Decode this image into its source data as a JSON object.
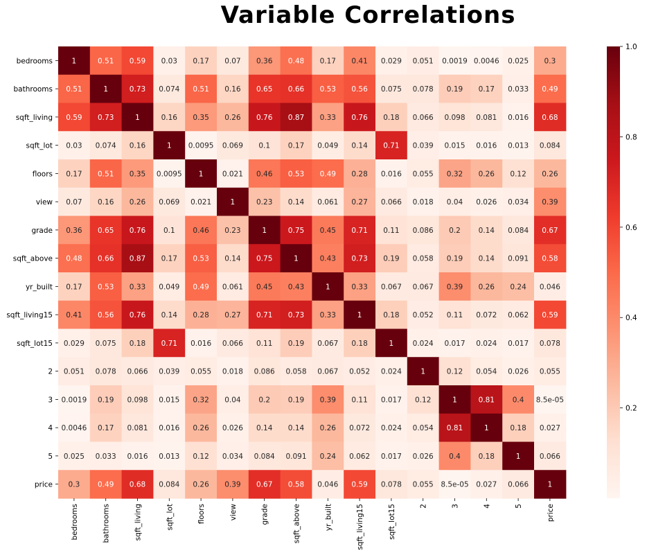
{
  "chart_data": {
    "type": "heatmap",
    "title": "Variable Correlations",
    "labels": [
      "bedrooms",
      "bathrooms",
      "sqft_living",
      "sqft_lot",
      "floors",
      "view",
      "grade",
      "sqft_above",
      "yr_built",
      "sqft_living15",
      "sqft_lot15",
      "2",
      "3",
      "4",
      "5",
      "price"
    ],
    "values": [
      [
        1,
        0.51,
        0.59,
        0.03,
        0.17,
        0.07,
        0.36,
        0.48,
        0.17,
        0.41,
        0.029,
        0.051,
        0.0019,
        0.0046,
        0.025,
        0.3
      ],
      [
        0.51,
        1,
        0.73,
        0.074,
        0.51,
        0.16,
        0.65,
        0.66,
        0.53,
        0.56,
        0.075,
        0.078,
        0.19,
        0.17,
        0.033,
        0.49
      ],
      [
        0.59,
        0.73,
        1,
        0.16,
        0.35,
        0.26,
        0.76,
        0.87,
        0.33,
        0.76,
        0.18,
        0.066,
        0.098,
        0.081,
        0.016,
        0.68
      ],
      [
        0.03,
        0.074,
        0.16,
        1,
        0.0095,
        0.069,
        0.1,
        0.17,
        0.049,
        0.14,
        0.71,
        0.039,
        0.015,
        0.016,
        0.013,
        0.084
      ],
      [
        0.17,
        0.51,
        0.35,
        0.0095,
        1,
        0.021,
        0.46,
        0.53,
        0.49,
        0.28,
        0.016,
        0.055,
        0.32,
        0.26,
        0.12,
        0.26
      ],
      [
        0.07,
        0.16,
        0.26,
        0.069,
        0.021,
        1,
        0.23,
        0.14,
        0.061,
        0.27,
        0.066,
        0.018,
        0.04,
        0.026,
        0.034,
        0.39
      ],
      [
        0.36,
        0.65,
        0.76,
        0.1,
        0.46,
        0.23,
        1,
        0.75,
        0.45,
        0.71,
        0.11,
        0.086,
        0.2,
        0.14,
        0.084,
        0.67
      ],
      [
        0.48,
        0.66,
        0.87,
        0.17,
        0.53,
        0.14,
        0.75,
        1,
        0.43,
        0.73,
        0.19,
        0.058,
        0.19,
        0.14,
        0.091,
        0.58
      ],
      [
        0.17,
        0.53,
        0.33,
        0.049,
        0.49,
        0.061,
        0.45,
        0.43,
        1,
        0.33,
        0.067,
        0.067,
        0.39,
        0.26,
        0.24,
        0.046
      ],
      [
        0.41,
        0.56,
        0.76,
        0.14,
        0.28,
        0.27,
        0.71,
        0.73,
        0.33,
        1,
        0.18,
        0.052,
        0.11,
        0.072,
        0.062,
        0.59
      ],
      [
        0.029,
        0.075,
        0.18,
        0.71,
        0.016,
        0.066,
        0.11,
        0.19,
        0.067,
        0.18,
        1,
        0.024,
        0.017,
        0.024,
        0.017,
        0.078
      ],
      [
        0.051,
        0.078,
        0.066,
        0.039,
        0.055,
        0.018,
        0.086,
        0.058,
        0.067,
        0.052,
        0.024,
        1,
        0.12,
        0.054,
        0.026,
        0.055
      ],
      [
        0.0019,
        0.19,
        0.098,
        0.015,
        0.32,
        0.04,
        0.2,
        0.19,
        0.39,
        0.11,
        0.017,
        0.12,
        1,
        0.81,
        0.4,
        8.5e-05
      ],
      [
        0.0046,
        0.17,
        0.081,
        0.016,
        0.26,
        0.026,
        0.14,
        0.14,
        0.26,
        0.072,
        0.024,
        0.054,
        0.81,
        1,
        0.18,
        0.027
      ],
      [
        0.025,
        0.033,
        0.016,
        0.013,
        0.12,
        0.034,
        0.084,
        0.091,
        0.24,
        0.062,
        0.017,
        0.026,
        0.4,
        0.18,
        1,
        0.066
      ],
      [
        0.3,
        0.49,
        0.68,
        0.084,
        0.26,
        0.39,
        0.67,
        0.58,
        0.046,
        0.59,
        0.078,
        0.055,
        8.5e-05,
        0.027,
        0.066,
        1
      ]
    ],
    "cell_text": [
      [
        "1",
        "0.51",
        "0.59",
        "0.03",
        "0.17",
        "0.07",
        "0.36",
        "0.48",
        "0.17",
        "0.41",
        "0.029",
        "0.051",
        "0.0019",
        "0.0046",
        "0.025",
        "0.3"
      ],
      [
        "0.51",
        "1",
        "0.73",
        "0.074",
        "0.51",
        "0.16",
        "0.65",
        "0.66",
        "0.53",
        "0.56",
        "0.075",
        "0.078",
        "0.19",
        "0.17",
        "0.033",
        "0.49"
      ],
      [
        "0.59",
        "0.73",
        "1",
        "0.16",
        "0.35",
        "0.26",
        "0.76",
        "0.87",
        "0.33",
        "0.76",
        "0.18",
        "0.066",
        "0.098",
        "0.081",
        "0.016",
        "0.68"
      ],
      [
        "0.03",
        "0.074",
        "0.16",
        "1",
        "0.0095",
        "0.069",
        "0.1",
        "0.17",
        "0.049",
        "0.14",
        "0.71",
        "0.039",
        "0.015",
        "0.016",
        "0.013",
        "0.084"
      ],
      [
        "0.17",
        "0.51",
        "0.35",
        "0.0095",
        "1",
        "0.021",
        "0.46",
        "0.53",
        "0.49",
        "0.28",
        "0.016",
        "0.055",
        "0.32",
        "0.26",
        "0.12",
        "0.26"
      ],
      [
        "0.07",
        "0.16",
        "0.26",
        "0.069",
        "0.021",
        "1",
        "0.23",
        "0.14",
        "0.061",
        "0.27",
        "0.066",
        "0.018",
        "0.04",
        "0.026",
        "0.034",
        "0.39"
      ],
      [
        "0.36",
        "0.65",
        "0.76",
        "0.1",
        "0.46",
        "0.23",
        "1",
        "0.75",
        "0.45",
        "0.71",
        "0.11",
        "0.086",
        "0.2",
        "0.14",
        "0.084",
        "0.67"
      ],
      [
        "0.48",
        "0.66",
        "0.87",
        "0.17",
        "0.53",
        "0.14",
        "0.75",
        "1",
        "0.43",
        "0.73",
        "0.19",
        "0.058",
        "0.19",
        "0.14",
        "0.091",
        "0.58"
      ],
      [
        "0.17",
        "0.53",
        "0.33",
        "0.049",
        "0.49",
        "0.061",
        "0.45",
        "0.43",
        "1",
        "0.33",
        "0.067",
        "0.067",
        "0.39",
        "0.26",
        "0.24",
        "0.046"
      ],
      [
        "0.41",
        "0.56",
        "0.76",
        "0.14",
        "0.28",
        "0.27",
        "0.71",
        "0.73",
        "0.33",
        "1",
        "0.18",
        "0.052",
        "0.11",
        "0.072",
        "0.062",
        "0.59"
      ],
      [
        "0.029",
        "0.075",
        "0.18",
        "0.71",
        "0.016",
        "0.066",
        "0.11",
        "0.19",
        "0.067",
        "0.18",
        "1",
        "0.024",
        "0.017",
        "0.024",
        "0.017",
        "0.078"
      ],
      [
        "0.051",
        "0.078",
        "0.066",
        "0.039",
        "0.055",
        "0.018",
        "0.086",
        "0.058",
        "0.067",
        "0.052",
        "0.024",
        "1",
        "0.12",
        "0.054",
        "0.026",
        "0.055"
      ],
      [
        "0.0019",
        "0.19",
        "0.098",
        "0.015",
        "0.32",
        "0.04",
        "0.2",
        "0.19",
        "0.39",
        "0.11",
        "0.017",
        "0.12",
        "1",
        "0.81",
        "0.4",
        "8.5e-05"
      ],
      [
        "0.0046",
        "0.17",
        "0.081",
        "0.016",
        "0.26",
        "0.026",
        "0.14",
        "0.14",
        "0.26",
        "0.072",
        "0.024",
        "0.054",
        "0.81",
        "1",
        "0.18",
        "0.027"
      ],
      [
        "0.025",
        "0.033",
        "0.016",
        "0.013",
        "0.12",
        "0.034",
        "0.084",
        "0.091",
        "0.24",
        "0.062",
        "0.017",
        "0.026",
        "0.4",
        "0.18",
        "1",
        "0.066"
      ],
      [
        "0.3",
        "0.49",
        "0.68",
        "0.084",
        "0.26",
        "0.39",
        "0.67",
        "0.58",
        "0.046",
        "0.59",
        "0.078",
        "0.055",
        "8.5e-05",
        "0.027",
        "0.066",
        "1"
      ]
    ],
    "colormap": "Reds",
    "colormap_stops": [
      "#fff5f0",
      "#fee0d2",
      "#fcbba1",
      "#fc9272",
      "#fb6a4a",
      "#ef3b2c",
      "#cb181d",
      "#a50f15",
      "#67000d"
    ],
    "vmin": 8.5e-05,
    "vmax": 1,
    "colorbar_ticks": [
      0.2,
      0.4,
      0.6,
      0.8,
      1.0
    ],
    "colorbar_tick_labels": [
      "0.2",
      "0.4",
      "0.6",
      "0.8",
      "1.0"
    ],
    "annotated": true,
    "grid": false,
    "colorbar_placement": "right"
  }
}
